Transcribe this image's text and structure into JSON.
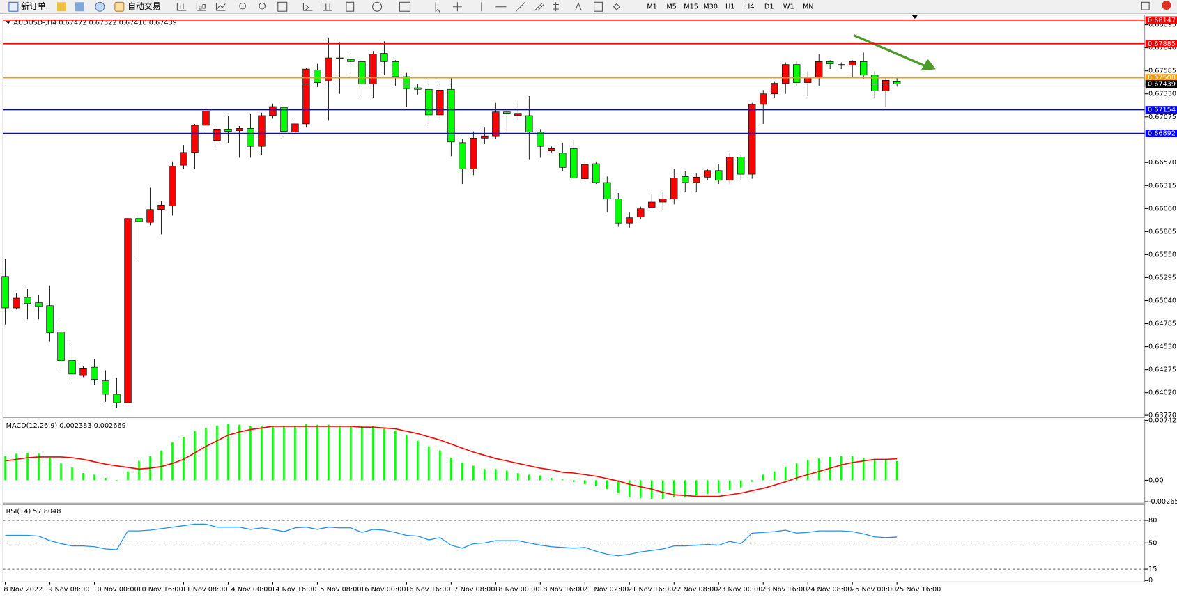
{
  "toolbar": {
    "new_order": "新订单",
    "auto_trading": "自动交易",
    "timeframes": [
      "M1",
      "M5",
      "M15",
      "M30",
      "H1",
      "H4",
      "D1",
      "W1",
      "MN"
    ]
  },
  "chart_data": [
    {
      "type": "candlestick",
      "title": "AUDUSD-,H4  0.67472 0.67522 0.67410 0.67439",
      "up_color": "#ff0000",
      "down_color": "#00ff00",
      "outline_color": "#000000",
      "open": [
        0.65308,
        0.64959,
        0.65075,
        0.65017,
        0.64984,
        0.64693,
        0.64376,
        0.6421,
        0.64302,
        0.64152,
        0.64002,
        0.6391,
        0.65949,
        0.65907,
        0.66049,
        0.6609,
        0.6654,
        0.66681,
        0.66981,
        0.66814,
        0.66939,
        0.66922,
        0.66947,
        0.66748,
        0.67089,
        0.6718,
        0.66906,
        0.66997,
        0.67596,
        0.6748,
        0.67721,
        0.67713,
        0.67688,
        0.67438,
        0.67779,
        0.67688,
        0.67521,
        0.67397,
        0.6738,
        0.67097,
        0.6738,
        0.66789,
        0.66498,
        0.66839,
        0.66864,
        0.6713,
        0.67089,
        0.67089,
        0.66906,
        0.66698,
        0.66673,
        0.66723,
        0.6639,
        0.66556,
        0.66348,
        0.66165,
        0.65899,
        0.65966,
        0.66074,
        0.66132,
        0.66165,
        0.66415,
        0.66348,
        0.66407,
        0.66481,
        0.66373,
        0.66631,
        0.6644,
        0.67213,
        0.6733,
        0.67447,
        0.67655,
        0.67455,
        0.67513,
        0.67688,
        0.67655,
        0.67646,
        0.67688,
        0.67538,
        0.67363,
        0.67472
      ],
      "high": [
        0.655,
        0.65125,
        0.65167,
        0.651,
        0.65208,
        0.64792,
        0.64559,
        0.6431,
        0.64393,
        0.64268,
        0.64185,
        0.65957,
        0.65974,
        0.6629,
        0.6614,
        0.66581,
        0.66764,
        0.66997,
        0.67164,
        0.66997,
        0.6708,
        0.66972,
        0.67105,
        0.67122,
        0.67222,
        0.67222,
        0.67039,
        0.67621,
        0.67663,
        0.67954,
        0.67896,
        0.67763,
        0.67704,
        0.67804,
        0.67912,
        0.67704,
        0.67563,
        0.67438,
        0.67471,
        0.67455,
        0.67505,
        0.66831,
        0.66914,
        0.66956,
        0.6723,
        0.67164,
        0.67247,
        0.67305,
        0.66939,
        0.66748,
        0.66789,
        0.66823,
        0.66581,
        0.66581,
        0.66415,
        0.66232,
        0.66015,
        0.66082,
        0.66223,
        0.66248,
        0.66498,
        0.66473,
        0.66456,
        0.66498,
        0.66556,
        0.66681,
        0.66648,
        0.6723,
        0.67372,
        0.67471,
        0.67679,
        0.67688,
        0.6758,
        0.67771,
        0.67704,
        0.67679,
        0.67704,
        0.67788,
        0.6758,
        0.67513,
        0.67522
      ],
      "low": [
        0.64776,
        0.64942,
        0.64834,
        0.64834,
        0.64584,
        0.64293,
        0.64143,
        0.64193,
        0.6411,
        0.63919,
        0.63852,
        0.63894,
        0.65525,
        0.65874,
        0.65774,
        0.65982,
        0.66498,
        0.66498,
        0.66939,
        0.66748,
        0.66789,
        0.66623,
        0.66623,
        0.66648,
        0.67055,
        0.66872,
        0.66847,
        0.66956,
        0.67405,
        0.67039,
        0.6733,
        0.67538,
        0.67313,
        0.67288,
        0.67538,
        0.67413,
        0.67189,
        0.67322,
        0.66956,
        0.67039,
        0.66639,
        0.66332,
        0.66431,
        0.66773,
        0.66831,
        0.66914,
        0.67039,
        0.66606,
        0.66623,
        0.66681,
        0.66473,
        0.6639,
        0.66373,
        0.66332,
        0.66015,
        0.65857,
        0.65849,
        0.65941,
        0.66057,
        0.6604,
        0.66107,
        0.66248,
        0.66248,
        0.66373,
        0.66332,
        0.66332,
        0.66373,
        0.6639,
        0.66997,
        0.67288,
        0.6733,
        0.67413,
        0.67305,
        0.67413,
        0.67605,
        0.67605,
        0.67513,
        0.67496,
        0.67288,
        0.67189,
        0.6741
      ],
      "close": [
        0.64959,
        0.65067,
        0.65009,
        0.64975,
        0.64684,
        0.64376,
        0.64227,
        0.64293,
        0.64168,
        0.64002,
        0.6391,
        0.65949,
        0.65916,
        0.66049,
        0.66099,
        0.66531,
        0.66681,
        0.66981,
        0.67139,
        0.66939,
        0.66914,
        0.66947,
        0.66748,
        0.67089,
        0.67189,
        0.66914,
        0.66997,
        0.67605,
        0.67455,
        0.67729,
        0.67729,
        0.67688,
        0.67438,
        0.67771,
        0.67688,
        0.67521,
        0.67388,
        0.6738,
        0.67097,
        0.67372,
        0.66797,
        0.66498,
        0.66839,
        0.66864,
        0.6713,
        0.67114,
        0.67114,
        0.66906,
        0.66748,
        0.66723,
        0.66515,
        0.66398,
        0.66548,
        0.66348,
        0.66165,
        0.65899,
        0.65957,
        0.66057,
        0.66132,
        0.66165,
        0.66398,
        0.66348,
        0.66407,
        0.66481,
        0.66373,
        0.66631,
        0.6644,
        0.67213,
        0.6733,
        0.67447,
        0.67655,
        0.67455,
        0.67513,
        0.67688,
        0.67663,
        0.67646,
        0.67688,
        0.67538,
        0.67363,
        0.6748,
        0.67439
      ],
      "ylim": [
        0.63745,
        0.68203
      ],
      "yticks": [
        0.68095,
        {
          "value": 0.6784,
          "label": "0.67840"
        },
        0.67585,
        {
          "value": 0.6733,
          "label": "0.67330"
        },
        0.67075,
        {
          "value": 0.6657,
          "label": "0.66570"
        },
        0.66315,
        {
          "value": 0.6606,
          "label": "0.66060"
        },
        0.65805,
        {
          "value": 0.6555,
          "label": "0.65550"
        },
        0.65295,
        {
          "value": 0.6504,
          "label": "0.65040"
        },
        0.64785,
        {
          "value": 0.6453,
          "label": "0.64530"
        },
        0.64275,
        {
          "value": 0.6402,
          "label": "0.64020"
        },
        {
          "value": 0.6377,
          "label": "0.63770"
        }
      ],
      "hlines": [
        {
          "value": 0.68147,
          "color": "#ff0000"
        },
        {
          "value": 0.67885,
          "color": "#ff0000"
        },
        {
          "value": 0.67508,
          "color": "#ff9900"
        },
        {
          "value": 0.67439,
          "color": "#000000"
        },
        {
          "value": 0.67154,
          "color": "#0000ff"
        },
        {
          "value": 0.66892,
          "color": "#0000ff"
        }
      ]
    },
    {
      "type": "macd",
      "title": "MACD(12,26,9) 0.002383 0.002669",
      "series": [
        {
          "style": "bar",
          "color": "#00ff00",
          "values": [
            0.003,
            0.0033,
            0.0034,
            0.0033,
            0.0028,
            0.0021,
            0.0016,
            0.0009,
            0.0007,
            0.0003,
            -0.0001,
            0.0011,
            0.0024,
            0.003,
            0.0037,
            0.0047,
            0.0054,
            0.0061,
            0.0065,
            0.0068,
            0.007,
            0.0069,
            0.0067,
            0.0068,
            0.0068,
            0.0067,
            0.0067,
            0.007,
            0.0069,
            0.0069,
            0.0068,
            0.0067,
            0.0067,
            0.0067,
            0.0065,
            0.0062,
            0.0056,
            0.0049,
            0.0042,
            0.0037,
            0.0028,
            0.0022,
            0.0018,
            0.0014,
            0.0014,
            0.0012,
            0.0009,
            0.0007,
            0.0006,
            0.0003,
            0.0001,
            -0.0002,
            -0.0005,
            -0.0007,
            -0.0011,
            -0.0016,
            -0.0021,
            -0.0022,
            -0.0023,
            -0.0023,
            -0.0021,
            -0.0021,
            -0.0019,
            -0.0017,
            -0.0015,
            -0.0012,
            -0.0009,
            -0.0002,
            0.0007,
            0.0011,
            0.0017,
            0.0021,
            0.0025,
            0.0027,
            0.0029,
            0.003,
            0.003,
            0.0028,
            0.0025,
            0.0025,
            0.002383
          ]
        },
        {
          "style": "line",
          "color": "#ff0000",
          "values": [
            0.0024,
            0.0026,
            0.0028,
            0.0029,
            0.0029,
            0.0029,
            0.0028,
            0.0026,
            0.0023,
            0.002,
            0.0018,
            0.0016,
            0.0014,
            0.0015,
            0.0017,
            0.0021,
            0.0026,
            0.0034,
            0.0042,
            0.0049,
            0.0056,
            0.006,
            0.0063,
            0.0065,
            0.0067,
            0.0067,
            0.0067,
            0.0067,
            0.0067,
            0.0067,
            0.0067,
            0.0067,
            0.0066,
            0.0066,
            0.0065,
            0.0064,
            0.0061,
            0.0058,
            0.0054,
            0.005,
            0.0045,
            0.004,
            0.0035,
            0.0031,
            0.0027,
            0.0024,
            0.0021,
            0.0018,
            0.0015,
            0.0013,
            0.001,
            0.0009,
            0.0007,
            0.0005,
            0.0002,
            -0.0001,
            -0.0005,
            -0.0008,
            -0.0011,
            -0.0015,
            -0.0018,
            -0.0019,
            -0.002,
            -0.002,
            -0.002,
            -0.0018,
            -0.0016,
            -0.0013,
            -0.001,
            -0.0006,
            -0.0002,
            0.0003,
            0.0007,
            0.0011,
            0.0015,
            0.0019,
            0.0022,
            0.0024,
            0.0026,
            0.0026,
            0.002669
          ]
        }
      ],
      "ylim": [
        -0.002651,
        0.007422
      ],
      "yticks": [
        0.007422,
        {
          "value": 0,
          "label": "0.00"
        },
        -0.002651
      ]
    },
    {
      "type": "line",
      "title": "RSI(14) 57.8048",
      "color": "#1e90ff",
      "grid": "dashed",
      "values": [
        60,
        60,
        60,
        59,
        53,
        49,
        46,
        46,
        45,
        42,
        41,
        66,
        66,
        67,
        69,
        71,
        73,
        75,
        75,
        71,
        71,
        71,
        68,
        70,
        68,
        65,
        70,
        71,
        68,
        71,
        70,
        70,
        64,
        68,
        67,
        64,
        60,
        59,
        54,
        57,
        47,
        43,
        49,
        50,
        53,
        53,
        53,
        50,
        47,
        45,
        44,
        43,
        44,
        39,
        35,
        33,
        35,
        38,
        40,
        42,
        46,
        46,
        47,
        48,
        47,
        52,
        49,
        63,
        64,
        65,
        67,
        63,
        64,
        66,
        66,
        66,
        65,
        62,
        58,
        57,
        57.8048
      ],
      "ylim": [
        0,
        100
      ],
      "yticks": [
        80,
        50,
        15,
        0
      ],
      "categories": [
        "8 Nov 2022",
        null,
        null,
        null,
        "9 Nov 08:00",
        null,
        null,
        null,
        "10 Nov 00:00",
        null,
        null,
        null,
        "10 Nov 16:00",
        null,
        null,
        null,
        "11 Nov 08:00",
        null,
        null,
        null,
        "14 Nov 00:00",
        null,
        null,
        null,
        "14 Nov 16:00",
        null,
        null,
        null,
        "15 Nov 08:00",
        null,
        null,
        null,
        "16 Nov 00:00",
        null,
        null,
        null,
        "16 Nov 16:00",
        null,
        null,
        null,
        "17 Nov 08:00",
        null,
        null,
        null,
        "18 Nov 00:00",
        null,
        null,
        null,
        "18 Nov 16:00",
        null,
        null,
        null,
        "21 Nov 02:00",
        null,
        null,
        null,
        "21 Nov 16:00",
        null,
        null,
        null,
        "22 Nov 08:00",
        null,
        null,
        null,
        "23 Nov 00:00",
        null,
        null,
        null,
        "23 Nov 16:00",
        null,
        null,
        null,
        "24 Nov 08:00",
        null,
        null,
        null,
        "25 Nov 00:00",
        null,
        null,
        null,
        "25 Nov 16:00"
      ]
    }
  ]
}
